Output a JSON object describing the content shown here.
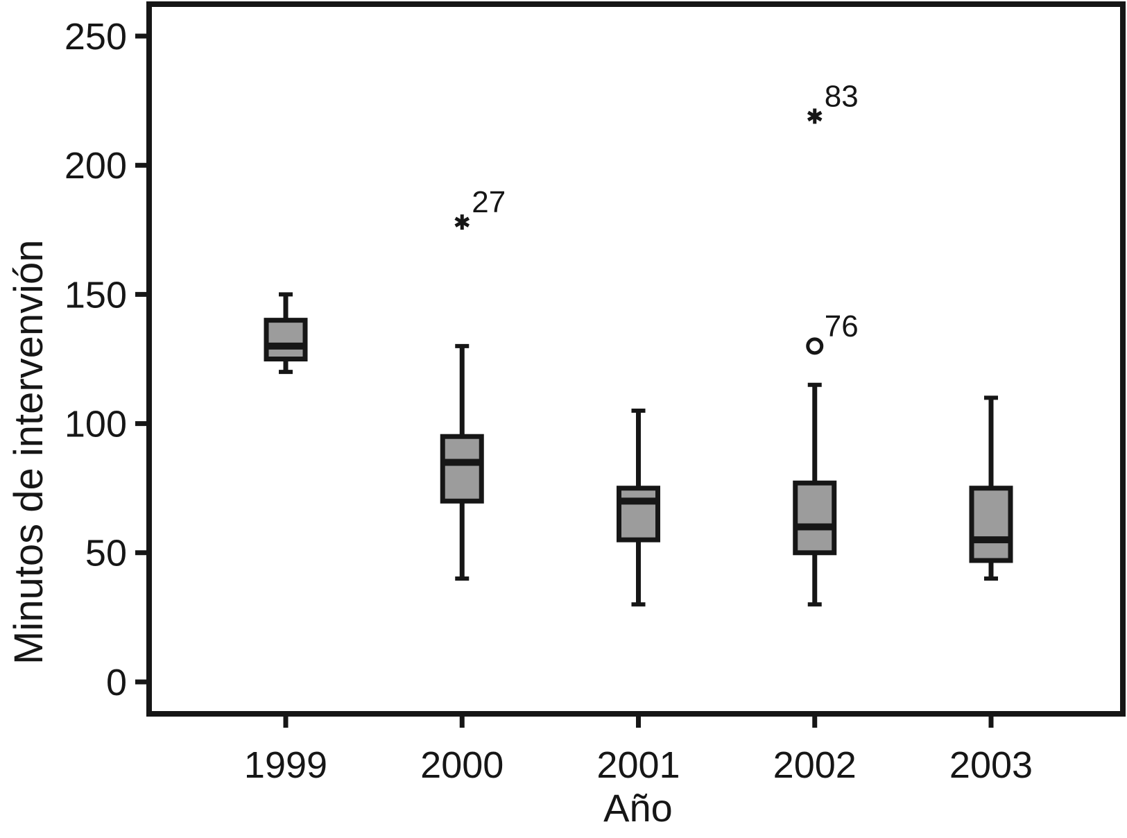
{
  "figure": {
    "background": "#ffffff",
    "line_color": "#161616",
    "box_fill": "#9c9c9c"
  },
  "chart_data": {
    "type": "box",
    "title": "",
    "xlabel": "Año",
    "ylabel": "Minutos de intervenvión",
    "categories": [
      "1999",
      "2000",
      "2001",
      "2002",
      "2003"
    ],
    "yticks": [
      0,
      50,
      100,
      150,
      200,
      250
    ],
    "ylim": [
      0,
      250
    ],
    "grid": false,
    "legend": "none",
    "series": [
      {
        "category": "1999",
        "whisker_low": 120,
        "q1": 125,
        "median": 130,
        "q3": 140,
        "whisker_high": 150,
        "outliers": []
      },
      {
        "category": "2000",
        "whisker_low": 40,
        "q1": 70,
        "median": 85,
        "q3": 95,
        "whisker_high": 130,
        "outliers": [
          {
            "value": 178,
            "label": "27",
            "marker": "asterisk"
          }
        ]
      },
      {
        "category": "2001",
        "whisker_low": 30,
        "q1": 55,
        "median": 70,
        "q3": 75,
        "whisker_high": 105,
        "outliers": []
      },
      {
        "category": "2002",
        "whisker_low": 30,
        "q1": 50,
        "median": 60,
        "q3": 77,
        "whisker_high": 115,
        "outliers": [
          {
            "value": 130,
            "label": "76",
            "marker": "circle"
          },
          {
            "value": 219,
            "label": "83",
            "marker": "asterisk"
          }
        ]
      },
      {
        "category": "2003",
        "whisker_low": 40,
        "q1": 47,
        "median": 55,
        "q3": 75,
        "whisker_high": 110,
        "outliers": []
      }
    ]
  }
}
